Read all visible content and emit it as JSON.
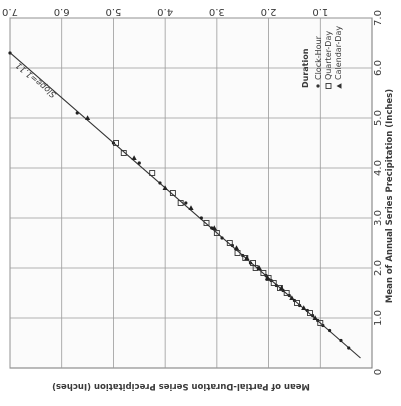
{
  "chart_data": {
    "type": "scatter",
    "title": "",
    "xlabel": "Mean of Annual Series Precipitation (Inches)",
    "ylabel": "Mean of Partial-Duration Series Precipitation (Inches)",
    "xlim": [
      0,
      7.0
    ],
    "ylim": [
      0,
      7.0
    ],
    "x_ticks": [
      "1.0",
      "2.0",
      "3.0",
      "4.0",
      "5.0",
      "6.0",
      "7.0"
    ],
    "y_ticks": [
      "1.0",
      "2.0",
      "3.0",
      "4.0",
      "5.0",
      "6.0",
      "7.0"
    ],
    "grid": true,
    "legend": {
      "title": "Duration",
      "placement": "top-right",
      "entries": [
        "Clock-Hour",
        "Quarter-Day",
        "Calendar-Day"
      ]
    },
    "fit_line": {
      "label": "Slope=1.11",
      "slope": 1.11,
      "x_range": [
        0.2,
        6.5
      ]
    },
    "series": [
      {
        "name": "Clock-Hour",
        "marker": "dot",
        "points": [
          [
            0.4,
            0.45
          ],
          [
            0.55,
            0.6
          ],
          [
            0.75,
            0.82
          ],
          [
            0.85,
            0.95
          ],
          [
            0.95,
            1.05
          ],
          [
            1.05,
            1.15
          ],
          [
            1.15,
            1.25
          ],
          [
            1.25,
            1.4
          ],
          [
            1.35,
            1.5
          ],
          [
            1.45,
            1.6
          ],
          [
            1.55,
            1.72
          ],
          [
            1.65,
            1.85
          ],
          [
            1.75,
            1.95
          ],
          [
            1.85,
            2.05
          ],
          [
            2.0,
            2.2
          ],
          [
            2.1,
            2.35
          ],
          [
            2.25,
            2.5
          ],
          [
            2.45,
            2.7
          ],
          [
            2.6,
            2.9
          ],
          [
            2.8,
            3.1
          ],
          [
            3.0,
            3.3
          ],
          [
            3.3,
            3.6
          ],
          [
            3.7,
            4.1
          ],
          [
            4.1,
            4.5
          ],
          [
            4.5,
            5.0
          ],
          [
            5.1,
            5.7
          ],
          [
            6.3,
            7.0
          ]
        ]
      },
      {
        "name": "Quarter-Day",
        "marker": "square",
        "points": [
          [
            0.9,
            1.0
          ],
          [
            1.1,
            1.2
          ],
          [
            1.3,
            1.45
          ],
          [
            1.5,
            1.65
          ],
          [
            1.6,
            1.78
          ],
          [
            1.7,
            1.9
          ],
          [
            1.8,
            2.0
          ],
          [
            1.9,
            2.1
          ],
          [
            2.0,
            2.25
          ],
          [
            2.1,
            2.3
          ],
          [
            2.2,
            2.45
          ],
          [
            2.3,
            2.6
          ],
          [
            2.5,
            2.75
          ],
          [
            2.7,
            3.0
          ],
          [
            2.9,
            3.2
          ],
          [
            3.3,
            3.7
          ],
          [
            3.5,
            3.85
          ],
          [
            3.9,
            4.25
          ],
          [
            4.3,
            4.8
          ],
          [
            4.5,
            4.95
          ]
        ]
      },
      {
        "name": "Calendar-Day",
        "marker": "triangle",
        "points": [
          [
            1.0,
            1.1
          ],
          [
            1.2,
            1.32
          ],
          [
            1.4,
            1.55
          ],
          [
            1.6,
            1.75
          ],
          [
            1.8,
            2.02
          ],
          [
            2.0,
            2.18
          ],
          [
            2.2,
            2.42
          ],
          [
            2.4,
            2.62
          ],
          [
            2.8,
            3.05
          ],
          [
            3.2,
            3.5
          ],
          [
            3.6,
            4.0
          ],
          [
            4.2,
            4.6
          ],
          [
            5.0,
            5.5
          ]
        ]
      }
    ]
  }
}
